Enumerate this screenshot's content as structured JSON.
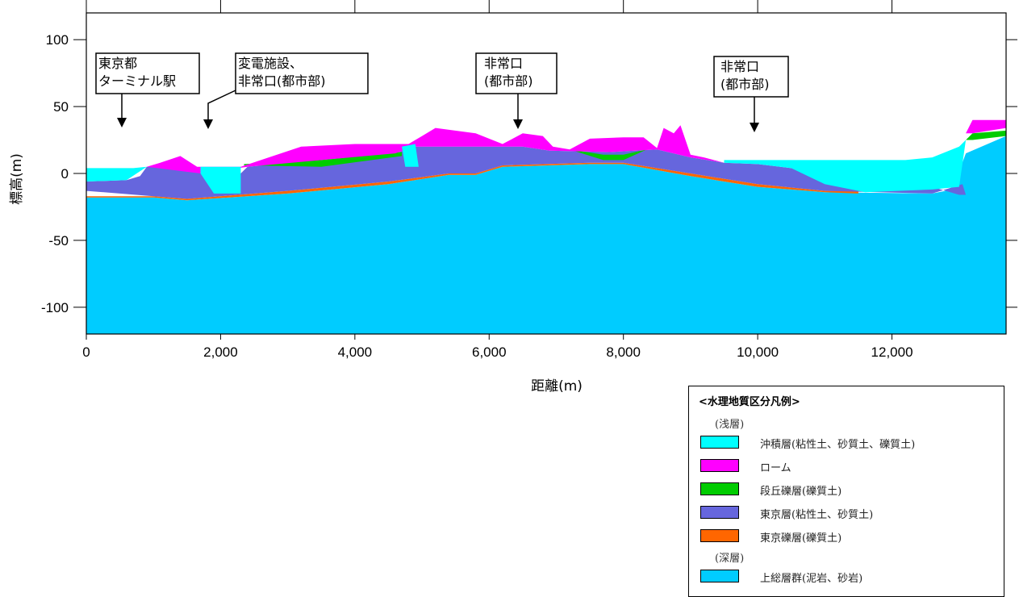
{
  "chart_data": {
    "type": "area",
    "xlabel": "距離(m)",
    "ylabel": "標高(m)",
    "xlim": [
      0,
      13700
    ],
    "ylim": [
      -120,
      120
    ],
    "x_ticks": [
      0,
      2000,
      4000,
      6000,
      8000,
      10000,
      12000
    ],
    "x_tick_labels": [
      "0",
      "2,000",
      "4,000",
      "6,000",
      "8,000",
      "10,000",
      "12,000"
    ],
    "y_ticks": [
      100,
      50,
      0,
      -50,
      -100
    ],
    "y_tick_labels": [
      "100",
      "50",
      "0",
      "-50",
      "-100"
    ],
    "layers": [
      {
        "name": "上総層群(泥岩、砂岩)",
        "color": "#00ccff",
        "points": [
          [
            0,
            -120
          ],
          [
            0,
            -18
          ],
          [
            1000,
            -18
          ],
          [
            1500,
            -20
          ],
          [
            3000,
            -15
          ],
          [
            4500,
            -8
          ],
          [
            5400,
            -1
          ],
          [
            5800,
            -1
          ],
          [
            6200,
            5
          ],
          [
            7500,
            7
          ],
          [
            8000,
            7
          ],
          [
            9000,
            -2
          ],
          [
            10000,
            -10
          ],
          [
            11000,
            -14
          ],
          [
            12600,
            -15
          ],
          [
            12900,
            -12
          ],
          [
            13100,
            15
          ],
          [
            13700,
            28
          ],
          [
            13700,
            -120
          ]
        ]
      },
      {
        "name": "東京礫層(礫質土)",
        "color": "#ff6600",
        "points": [
          [
            0,
            -17
          ],
          [
            1000,
            -17
          ],
          [
            1500,
            -19
          ],
          [
            3000,
            -13
          ],
          [
            4500,
            -6
          ],
          [
            5400,
            0
          ],
          [
            5800,
            0
          ],
          [
            6200,
            6
          ],
          [
            7500,
            8
          ],
          [
            8000,
            8
          ],
          [
            9000,
            0
          ],
          [
            10000,
            -8
          ],
          [
            11000,
            -13
          ],
          [
            11500,
            -13
          ],
          [
            11500,
            -15
          ],
          [
            11000,
            -14
          ],
          [
            10000,
            -10
          ],
          [
            9000,
            -2
          ],
          [
            8000,
            7
          ],
          [
            7500,
            7
          ],
          [
            6200,
            5
          ],
          [
            5800,
            -1
          ],
          [
            5400,
            -1
          ],
          [
            4500,
            -8
          ],
          [
            3000,
            -15
          ],
          [
            1500,
            -20
          ],
          [
            1000,
            -18
          ],
          [
            0,
            -18
          ]
        ]
      },
      {
        "name": "東京層(粘性土、砂質土)",
        "color": "#6666dd",
        "points": [
          [
            0,
            -13
          ],
          [
            0,
            -6
          ],
          [
            600,
            -5
          ],
          [
            800,
            -2
          ],
          [
            900,
            5
          ],
          [
            1100,
            6
          ],
          [
            1400,
            8
          ],
          [
            1650,
            4
          ],
          [
            1700,
            0
          ],
          [
            2300,
            0
          ],
          [
            2400,
            5
          ],
          [
            3500,
            10
          ],
          [
            4600,
            15
          ],
          [
            4900,
            20
          ],
          [
            6500,
            20
          ],
          [
            6900,
            17
          ],
          [
            7800,
            16
          ],
          [
            8500,
            18
          ],
          [
            9000,
            12
          ],
          [
            9500,
            8
          ],
          [
            10000,
            7
          ],
          [
            10500,
            4
          ],
          [
            11000,
            0
          ],
          [
            11600,
            -2
          ],
          [
            12200,
            -8
          ],
          [
            12600,
            -10
          ],
          [
            13000,
            -16
          ],
          [
            13100,
            -16
          ],
          [
            13050,
            -8
          ],
          [
            12600,
            -15
          ],
          [
            11000,
            -13
          ],
          [
            10000,
            -8
          ],
          [
            9000,
            0
          ],
          [
            8000,
            8
          ],
          [
            7500,
            8
          ],
          [
            6200,
            6
          ],
          [
            5800,
            0
          ],
          [
            5400,
            0
          ],
          [
            4500,
            -6
          ],
          [
            3000,
            -13
          ],
          [
            1500,
            -19
          ],
          [
            1000,
            -17
          ]
        ]
      },
      {
        "name": "段丘礫層(礫質土)",
        "color": "#00cc00",
        "points": [
          [
            2350,
            6
          ],
          [
            3500,
            5
          ],
          [
            4700,
            13
          ],
          [
            4700,
            16
          ],
          [
            3500,
            10
          ],
          [
            2350,
            7
          ]
        ]
      },
      {
        "name": "段丘礫層(礫質土)",
        "color": "#00cc00",
        "points": [
          [
            7200,
            18
          ],
          [
            7700,
            10
          ],
          [
            8000,
            10
          ],
          [
            8350,
            18
          ],
          [
            8000,
            14
          ],
          [
            7700,
            14
          ]
        ]
      },
      {
        "name": "段丘礫層(礫質土)",
        "color": "#00cc00",
        "points": [
          [
            13100,
            25
          ],
          [
            13200,
            30
          ],
          [
            13700,
            32
          ],
          [
            13700,
            28
          ],
          [
            13200,
            25
          ]
        ]
      },
      {
        "name": "ローム",
        "color": "#ff00ff",
        "points": [
          [
            900,
            5
          ],
          [
            1100,
            8
          ],
          [
            1400,
            13
          ],
          [
            1650,
            5
          ],
          [
            2300,
            5
          ],
          [
            2600,
            10
          ],
          [
            3200,
            20
          ],
          [
            4000,
            22
          ],
          [
            4800,
            22
          ],
          [
            5000,
            28
          ],
          [
            5200,
            34
          ],
          [
            5800,
            30
          ],
          [
            6200,
            22
          ],
          [
            6500,
            30
          ],
          [
            6800,
            28
          ],
          [
            6950,
            20
          ],
          [
            7200,
            18
          ],
          [
            7500,
            26
          ],
          [
            8000,
            27
          ],
          [
            8300,
            27
          ],
          [
            8500,
            19
          ],
          [
            8600,
            34
          ],
          [
            8750,
            30
          ],
          [
            8850,
            36
          ],
          [
            9000,
            14
          ],
          [
            9200,
            12
          ],
          [
            9500,
            8
          ],
          [
            9000,
            12
          ],
          [
            8500,
            18
          ],
          [
            7800,
            16
          ],
          [
            6900,
            17
          ],
          [
            6500,
            20
          ],
          [
            4900,
            20
          ],
          [
            4600,
            15
          ],
          [
            3500,
            10
          ],
          [
            2400,
            5
          ],
          [
            1700,
            0
          ]
        ]
      },
      {
        "name": "ローム",
        "color": "#ff00ff",
        "points": [
          [
            13100,
            30
          ],
          [
            13200,
            40
          ],
          [
            13700,
            40
          ],
          [
            13700,
            34
          ],
          [
            13200,
            30
          ]
        ]
      },
      {
        "name": "沖積層(粘性土、砂質土、礫質土)",
        "color": "#00ffff",
        "points": [
          [
            0,
            -6
          ],
          [
            0,
            4
          ],
          [
            700,
            4
          ],
          [
            900,
            5
          ],
          [
            600,
            -5
          ]
        ]
      },
      {
        "name": "沖積層(粘性土、砂質土、礫質土)",
        "color": "#00ffff",
        "points": [
          [
            1700,
            0
          ],
          [
            1700,
            5
          ],
          [
            2300,
            5
          ],
          [
            2300,
            -15
          ],
          [
            1900,
            -15
          ]
        ]
      },
      {
        "name": "沖積層(粘性土、砂質土、礫質土)",
        "color": "#00ffff",
        "points": [
          [
            4700,
            20
          ],
          [
            4900,
            22
          ],
          [
            4950,
            5
          ],
          [
            4750,
            5
          ]
        ]
      },
      {
        "name": "沖積層(粘性土、砂質土、礫質土)",
        "color": "#00ffff",
        "points": [
          [
            9500,
            8
          ],
          [
            9500,
            10
          ],
          [
            12200,
            10
          ],
          [
            12600,
            12
          ],
          [
            13000,
            20
          ],
          [
            13100,
            25
          ],
          [
            13000,
            -10
          ],
          [
            12600,
            -12
          ],
          [
            11600,
            -14
          ],
          [
            11000,
            -8
          ],
          [
            10500,
            4
          ],
          [
            10000,
            7
          ]
        ]
      }
    ],
    "annotations": [
      {
        "lines": [
          "東京都",
          "ターミナル駅"
        ],
        "x": 530,
        "y": 35
      },
      {
        "lines": [
          "変電施設、",
          "非常口(都市部)"
        ],
        "x": 1820,
        "y": 35
      },
      {
        "lines": [
          "非常口",
          "(都市部)"
        ],
        "x": 6440,
        "y": 35
      },
      {
        "lines": [
          "非常口",
          "(都市部)"
        ],
        "x": 9960,
        "y": 30
      }
    ]
  },
  "legend": {
    "title": "<水理地質区分凡例>",
    "group_shallow": "(浅層)",
    "group_deep": "(深層)",
    "items": [
      {
        "label": "沖積層(粘性土、砂質土、礫質土)",
        "color": "#00ffff"
      },
      {
        "label": "ローム",
        "color": "#ff00ff"
      },
      {
        "label": "段丘礫層(礫質土)",
        "color": "#00cc00"
      },
      {
        "label": "東京層(粘性土、砂質土)",
        "color": "#6666dd"
      },
      {
        "label": "東京礫層(礫質土)",
        "color": "#ff6600"
      }
    ],
    "deep_items": [
      {
        "label": "上総層群(泥岩、砂岩)",
        "color": "#00ccff"
      }
    ]
  }
}
